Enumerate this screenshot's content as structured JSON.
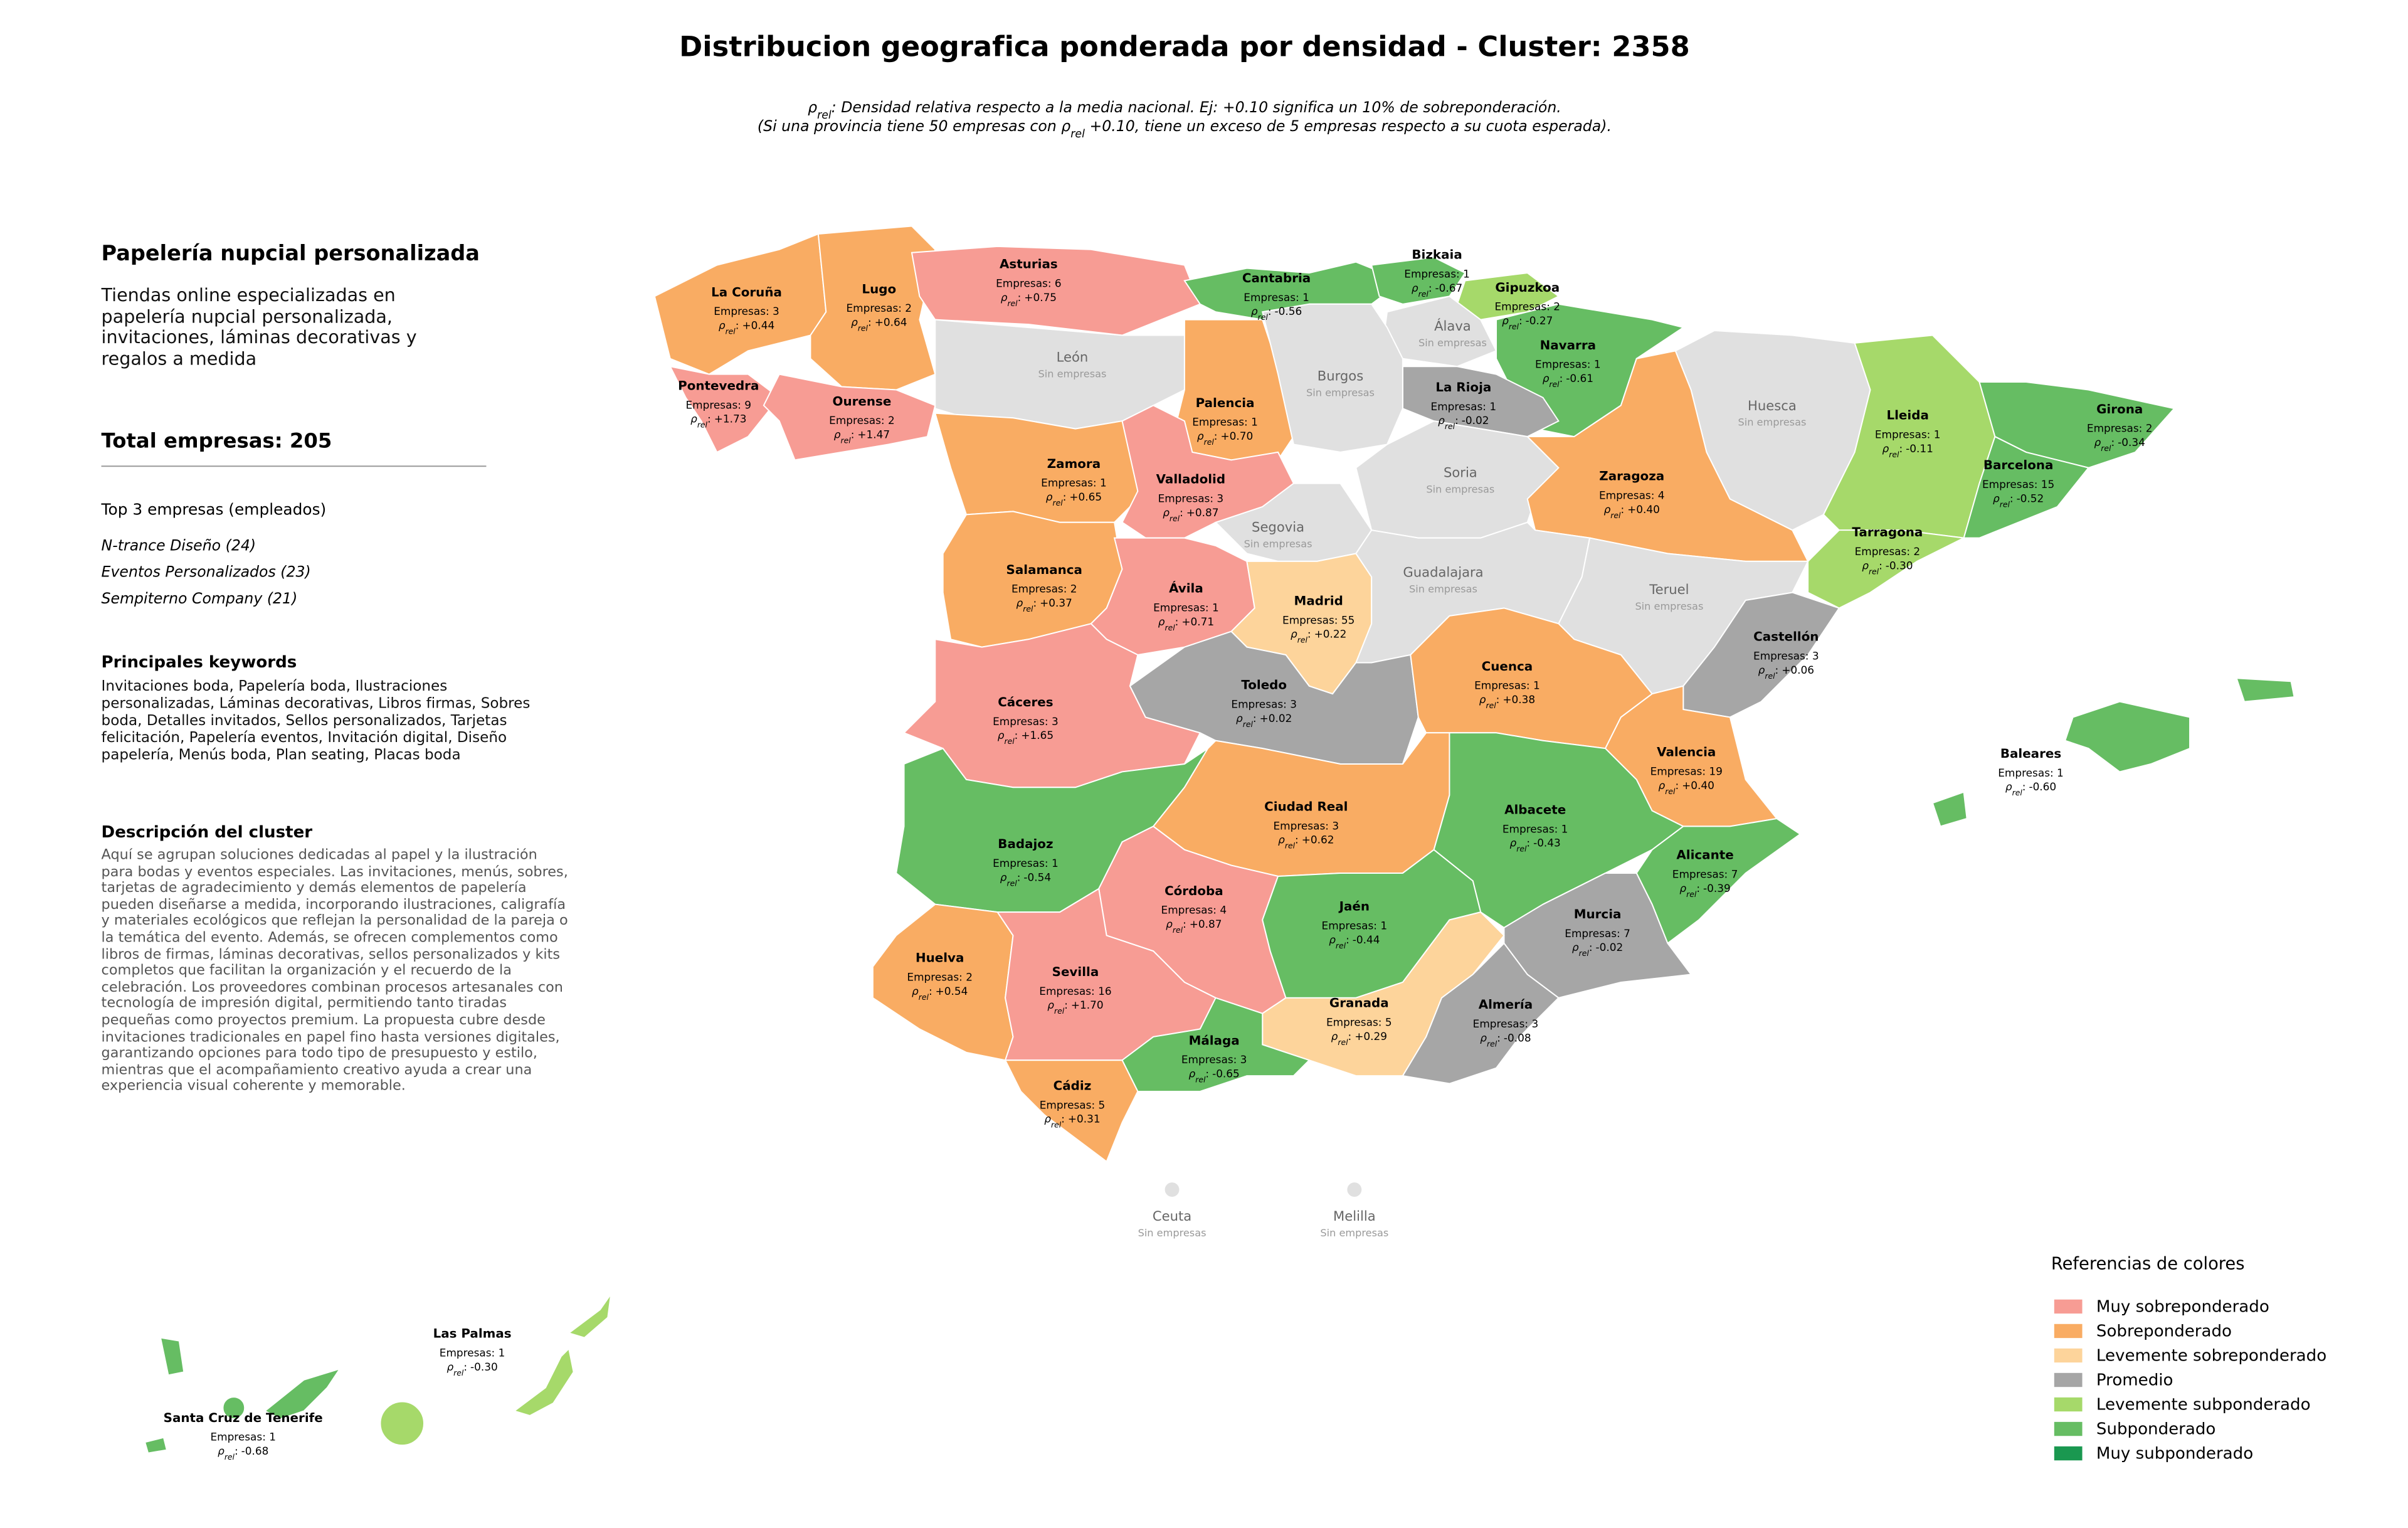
{
  "title": "Distribucion geografica ponderada por densidad - Cluster: 2358",
  "subtitle": [
    [
      "ρ",
      "rel",
      ": Densidad relativa respecto a la media nacional. Ej: +0.10 significa un 10% de sobreponderación."
    ],
    [
      "(Si una provincia tiene 50 empresas con ρ",
      "rel",
      " +0.10, tiene un exceso de 5 empresas respecto a su cuota esperada)."
    ]
  ],
  "rho_symbol": "ρ",
  "rho_subscript": "rel",
  "rho_separator": ":",
  "panel": {
    "title": "Papelería nupcial personalizada",
    "description": "Tiendas online especializadas en papelería nupcial personalizada, invitaciones, láminas decorativas y regalos a medida",
    "total": "Total empresas: 205",
    "top_title": "Top 3 empresas (empleados)",
    "top": [
      "N-trance Diseño (24)",
      "Eventos Personalizados (23)",
      "Sempiterno Company (21)"
    ],
    "keywords_title": "Principales keywords",
    "keywords": "Invitaciones boda, Papelería boda, Ilustraciones personalizadas, Láminas decorativas, Libros firmas, Sobres boda, Detalles invitados, Sellos personalizados, Tarjetas felicitación, Papelería eventos, Invitación digital, Diseño papelería, Menús boda, Plan seating, Placas boda",
    "cluster_title": "Descripción del cluster",
    "cluster_description": "Aquí se agrupan soluciones dedicadas al papel y la ilustración para bodas y eventos especiales. Las invitaciones, menús, sobres, tarjetas de agradecimiento y demás elementos de papelería pueden diseñarse a medida, incorporando ilustraciones, caligrafía y materiales ecológicos que reflejan la personalidad de la pareja o la temática del evento. Además, se ofrecen complementos como libros de firmas, láminas decorativas, sellos personalizados y kits completos que facilitan la organización y el recuerdo de la celebración. Los proveedores combinan procesos artesanales con tecnología de impresión digital, permitiendo tanto tiradas pequeñas como proyectos premium. La propuesta cubre desde invitaciones tradicionales en papel fino hasta versiones digitales, garantizando opciones para todo tipo de presupuesto y estilo, mientras que el acompañamiento creativo ayuda a crear una experiencia visual coherente y memorable."
  },
  "provinces": [
    {
      "name": "La Coruña",
      "count_label": "Empresas: 3",
      "rho": "+0.44",
      "color": "#f9ac63"
    },
    {
      "name": "Lugo",
      "count_label": "Empresas: 2",
      "rho": "+0.64",
      "color": "#f9ac63"
    },
    {
      "name": "Asturias",
      "count_label": "Empresas: 6",
      "rho": "+0.75",
      "color": "#f79c94"
    },
    {
      "name": "Cantabria",
      "count_label": "Empresas: 1",
      "rho": "-0.56",
      "color": "#66bd63"
    },
    {
      "name": "Bizkaia",
      "count_label": "Empresas: 1",
      "rho": "-0.67",
      "color": "#66bd63"
    },
    {
      "name": "Gipuzkoa",
      "count_label": "Empresas: 2",
      "rho": "-0.27",
      "color": "#a6d96a"
    },
    {
      "name": "Álava",
      "count_label": "Sin empresas",
      "color": "#e0e0e0"
    },
    {
      "name": "Navarra",
      "count_label": "Empresas: 1",
      "rho": "-0.61",
      "color": "#66bd63"
    },
    {
      "name": "La Rioja",
      "count_label": "Empresas: 1",
      "rho": "-0.02",
      "color": "#a6a6a6"
    },
    {
      "name": "Pontevedra",
      "count_label": "Empresas: 9",
      "rho": "+1.73",
      "color": "#f79c94"
    },
    {
      "name": "Ourense",
      "count_label": "Empresas: 2",
      "rho": "+1.47",
      "color": "#f79c94"
    },
    {
      "name": "León",
      "count_label": "Sin empresas",
      "color": "#e0e0e0"
    },
    {
      "name": "Palencia",
      "count_label": "Empresas: 1",
      "rho": "+0.70",
      "color": "#f9ac63"
    },
    {
      "name": "Burgos",
      "count_label": "Sin empresas",
      "color": "#e0e0e0"
    },
    {
      "name": "Zamora",
      "count_label": "Empresas: 1",
      "rho": "+0.65",
      "color": "#f9ac63"
    },
    {
      "name": "Valladolid",
      "count_label": "Empresas: 3",
      "rho": "+0.87",
      "color": "#f79c94"
    },
    {
      "name": "Soria",
      "count_label": "Sin empresas",
      "color": "#e0e0e0"
    },
    {
      "name": "Segovia",
      "count_label": "Sin empresas",
      "color": "#e0e0e0"
    },
    {
      "name": "Zaragoza",
      "count_label": "Empresas: 4",
      "rho": "+0.40",
      "color": "#f9ac63"
    },
    {
      "name": "Huesca",
      "count_label": "Sin empresas",
      "color": "#e0e0e0"
    },
    {
      "name": "Lleida",
      "count_label": "Empresas: 1",
      "rho": "-0.11",
      "color": "#a6d96a"
    },
    {
      "name": "Girona",
      "count_label": "Empresas: 2",
      "rho": "-0.34",
      "color": "#66bd63"
    },
    {
      "name": "Barcelona",
      "count_label": "Empresas: 15",
      "rho": "-0.52",
      "color": "#66bd63"
    },
    {
      "name": "Tarragona",
      "count_label": "Empresas: 2",
      "rho": "-0.30",
      "color": "#a6d96a"
    },
    {
      "name": "Salamanca",
      "count_label": "Empresas: 2",
      "rho": "+0.37",
      "color": "#f9ac63"
    },
    {
      "name": "Ávila",
      "count_label": "Empresas: 1",
      "rho": "+0.71",
      "color": "#f79c94"
    },
    {
      "name": "Madrid",
      "count_label": "Empresas: 55",
      "rho": "+0.22",
      "color": "#fdd49b"
    },
    {
      "name": "Guadalajara",
      "count_label": "Sin empresas",
      "color": "#e0e0e0"
    },
    {
      "name": "Teruel",
      "count_label": "Sin empresas",
      "color": "#e0e0e0"
    },
    {
      "name": "Castellón",
      "count_label": "Empresas: 3",
      "rho": "+0.06",
      "color": "#a6a6a6"
    },
    {
      "name": "Cáceres",
      "count_label": "Empresas: 3",
      "rho": "+1.65",
      "color": "#f79c94"
    },
    {
      "name": "Toledo",
      "count_label": "Empresas: 3",
      "rho": "+0.02",
      "color": "#a6a6a6"
    },
    {
      "name": "Cuenca",
      "count_label": "Empresas: 1",
      "rho": "+0.38",
      "color": "#f9ac63"
    },
    {
      "name": "Valencia",
      "count_label": "Empresas: 19",
      "rho": "+0.40",
      "color": "#f9ac63"
    },
    {
      "name": "Badajoz",
      "count_label": "Empresas: 1",
      "rho": "-0.54",
      "color": "#66bd63"
    },
    {
      "name": "Ciudad Real",
      "count_label": "Empresas: 3",
      "rho": "+0.62",
      "color": "#f9ac63"
    },
    {
      "name": "Albacete",
      "count_label": "Empresas: 1",
      "rho": "-0.43",
      "color": "#66bd63"
    },
    {
      "name": "Alicante",
      "count_label": "Empresas: 7",
      "rho": "-0.39",
      "color": "#66bd63"
    },
    {
      "name": "Murcia",
      "count_label": "Empresas: 7",
      "rho": "-0.02",
      "color": "#a6a6a6"
    },
    {
      "name": "Córdoba",
      "count_label": "Empresas: 4",
      "rho": "+0.87",
      "color": "#f79c94"
    },
    {
      "name": "Jaén",
      "count_label": "Empresas: 1",
      "rho": "-0.44",
      "color": "#66bd63"
    },
    {
      "name": "Granada",
      "count_label": "Empresas: 5",
      "rho": "+0.29",
      "color": "#fdd49b"
    },
    {
      "name": "Almería",
      "count_label": "Empresas: 3",
      "rho": "-0.08",
      "color": "#a6a6a6"
    },
    {
      "name": "Huelva",
      "count_label": "Empresas: 2",
      "rho": "+0.54",
      "color": "#f9ac63"
    },
    {
      "name": "Sevilla",
      "count_label": "Empresas: 16",
      "rho": "+1.70",
      "color": "#f79c94"
    },
    {
      "name": "Málaga",
      "count_label": "Empresas: 3",
      "rho": "-0.65",
      "color": "#66bd63"
    },
    {
      "name": "Cádiz",
      "count_label": "Empresas: 5",
      "rho": "+0.31",
      "color": "#f9ac63"
    },
    {
      "name": "Baleares",
      "count_label": "Empresas: 1",
      "rho": "-0.60",
      "color": "#66bd63"
    },
    {
      "name": "Las Palmas",
      "count_label": "Empresas: 1",
      "rho": "-0.30",
      "color": "#a6d96a"
    },
    {
      "name": "Santa Cruz de Tenerife",
      "count_label": "Empresas: 1",
      "rho": "-0.68",
      "color": "#66bd63"
    },
    {
      "name": "Ceuta",
      "count_label": "Sin empresas",
      "color": "#e0e0e0"
    },
    {
      "name": "Melilla",
      "count_label": "Sin empresas",
      "color": "#e0e0e0"
    }
  ],
  "legend": {
    "title": "Referencias de colores",
    "items": [
      {
        "name": "Muy sobreponderado",
        "color": "#f79c94"
      },
      {
        "name": "Sobreponderado",
        "color": "#f9ac63"
      },
      {
        "name": "Levemente sobreponderado",
        "color": "#fdd49b"
      },
      {
        "name": "Promedio",
        "color": "#a6a6a6"
      },
      {
        "name": "Levemente subponderado",
        "color": "#a6d96a"
      },
      {
        "name": "Subponderado",
        "color": "#66bd63"
      },
      {
        "name": "Muy subponderado",
        "color": "#1a9850"
      }
    ]
  }
}
